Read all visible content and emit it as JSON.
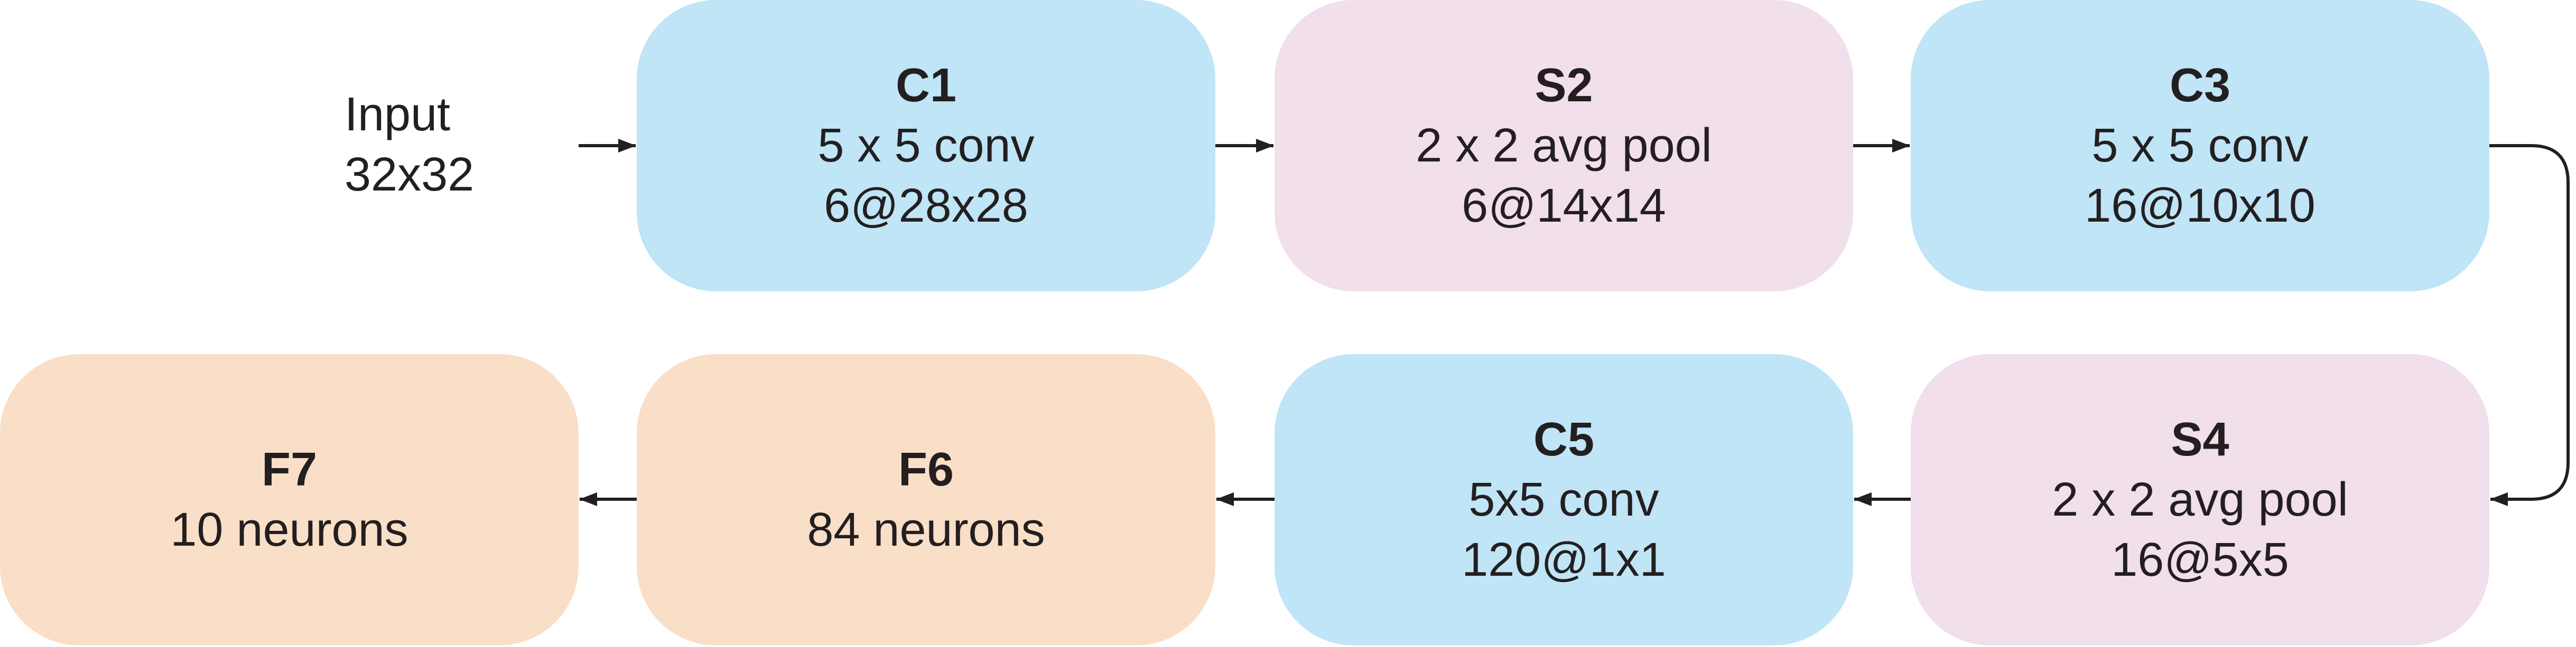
{
  "input": {
    "line1": "Input",
    "line2": "32x32"
  },
  "layers": {
    "c1": {
      "name": "C1",
      "op": "5 x 5 conv",
      "shape": "6@28x28",
      "color": "#bfe5f6"
    },
    "s2": {
      "name": "S2",
      "op": "2 x 2 avg pool",
      "shape": "6@14x14",
      "color": "#f1dfec"
    },
    "c3": {
      "name": "C3",
      "op": "5 x 5 conv",
      "shape": "16@10x10",
      "color": "#bfe5f6"
    },
    "s4": {
      "name": "S4",
      "op": "2 x 2 avg pool",
      "shape": "16@5x5",
      "color": "#f1dfec"
    },
    "c5": {
      "name": "C5",
      "op": "5x5 conv",
      "shape": "120@1x1",
      "color": "#bfe5f6"
    },
    "f6": {
      "name": "F6",
      "op": "84 neurons",
      "color": "#f9dfc8"
    },
    "f7": {
      "name": "F7",
      "op": "10 neurons",
      "color": "#f9dfc8"
    }
  },
  "flow": [
    "input",
    "c1",
    "s2",
    "c3",
    "s4",
    "c5",
    "f6",
    "f7"
  ]
}
